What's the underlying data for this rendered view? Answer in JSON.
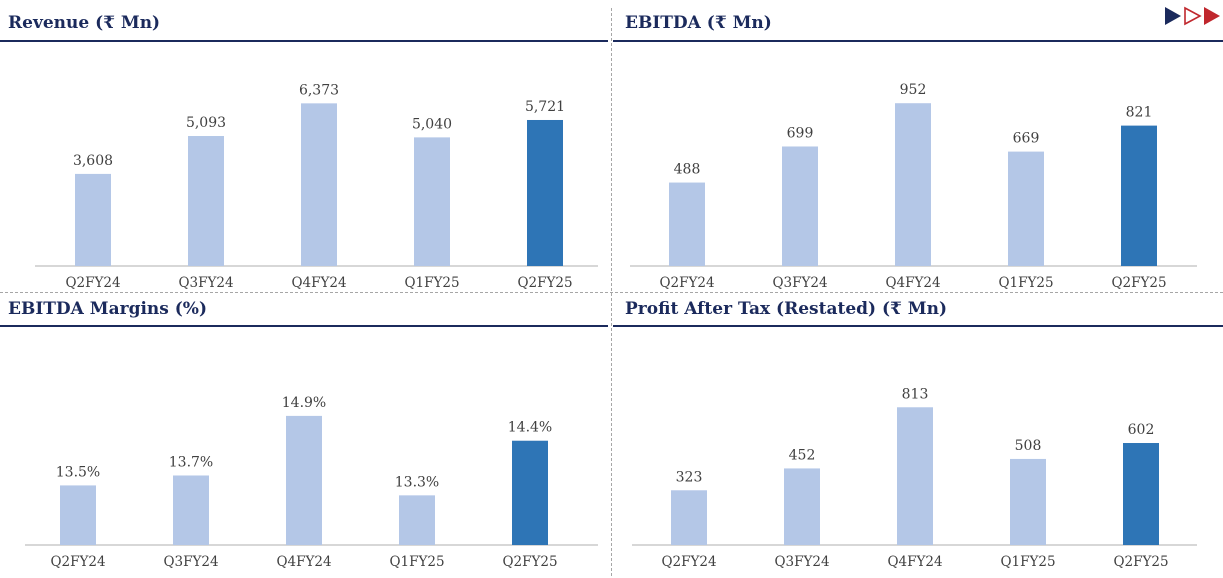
{
  "colors": {
    "title": "#1b2a5c",
    "bar_default": "#b4c7e7",
    "bar_highlight": "#2e75b6",
    "axis": "#bfbfbf",
    "label": "#404040",
    "divider": "#a6a6a6"
  },
  "nav": {
    "icons": [
      "play-filled-icon",
      "play-outline-icon",
      "play-red-icon"
    ]
  },
  "chart_data": [
    {
      "type": "bar",
      "title": "Revenue (₹ Mn)",
      "categories": [
        "Q2FY24",
        "Q3FY24",
        "Q4FY24",
        "Q1FY25",
        "Q2FY25"
      ],
      "values": [
        3608,
        5093,
        6373,
        5040,
        5721
      ],
      "value_labels": [
        "3,608",
        "5,093",
        "6,373",
        "5,040",
        "5,721"
      ],
      "highlight_index": 4,
      "ylim": [
        0,
        6700
      ],
      "grid": false
    },
    {
      "type": "bar",
      "title": "EBITDA (₹ Mn)",
      "categories": [
        "Q2FY24",
        "Q3FY24",
        "Q4FY24",
        "Q1FY25",
        "Q2FY25"
      ],
      "values": [
        488,
        699,
        952,
        669,
        821
      ],
      "value_labels": [
        "488",
        "699",
        "952",
        "669",
        "821"
      ],
      "highlight_index": 4,
      "ylim": [
        0,
        1000
      ],
      "grid": false
    },
    {
      "type": "bar",
      "title": "EBITDA Margins (%)",
      "categories": [
        "Q2FY24",
        "Q3FY24",
        "Q4FY24",
        "Q1FY25",
        "Q2FY25"
      ],
      "values": [
        13.5,
        13.7,
        14.9,
        13.3,
        14.4
      ],
      "value_labels": [
        "13.5%",
        "13.7%",
        "14.9%",
        "13.3%",
        "14.4%"
      ],
      "highlight_index": 4,
      "ylim": [
        12.3,
        15.2
      ],
      "grid": false
    },
    {
      "type": "bar",
      "title": "Profit After Tax (Restated) (₹ Mn)",
      "categories": [
        "Q2FY24",
        "Q3FY24",
        "Q4FY24",
        "Q1FY25",
        "Q2FY25"
      ],
      "values": [
        323,
        452,
        813,
        508,
        602
      ],
      "value_labels": [
        "323",
        "452",
        "813",
        "508",
        "602"
      ],
      "highlight_index": 4,
      "ylim": [
        0,
        850
      ],
      "grid": false
    }
  ]
}
